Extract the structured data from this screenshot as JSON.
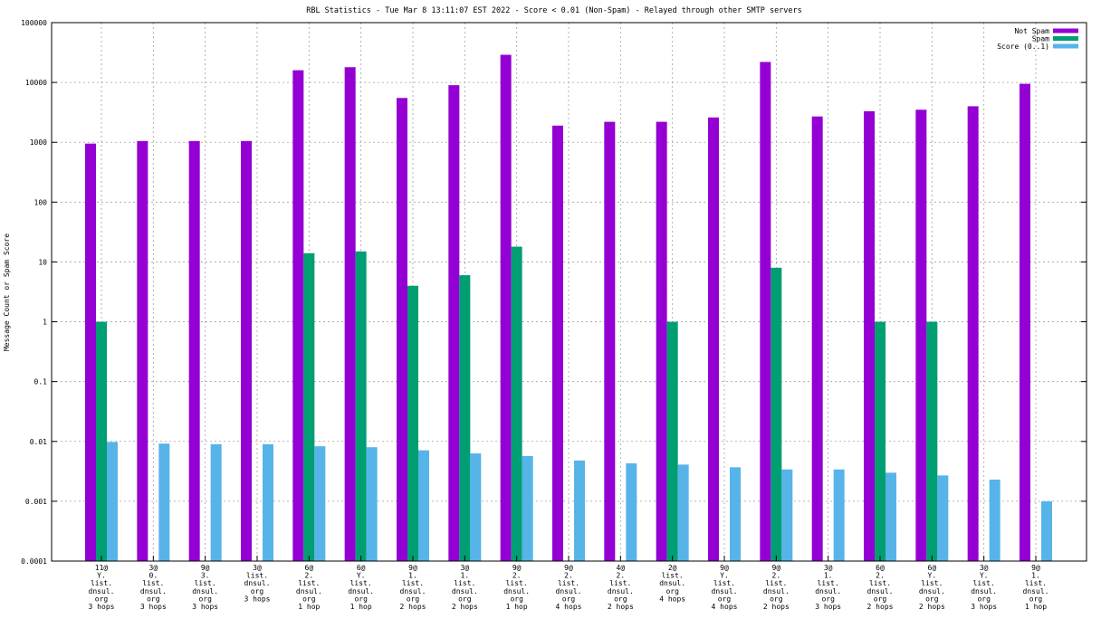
{
  "chart_data": {
    "type": "bar",
    "title": "RBL Statistics - Tue Mar  8 13:11:07 EST 2022 - Score < 0.01 (Non-Spam) - Relayed through other SMTP servers",
    "xlabel": "",
    "ylabel": "Message Count or Spam Score",
    "yscale": "log",
    "ylim": [
      0.0001,
      100000
    ],
    "yticks": [
      "100000",
      "10000",
      "1000",
      "100",
      "10",
      "1",
      "0.1",
      "0.01",
      "0.001",
      "0.0001"
    ],
    "grid": true,
    "legend_position": "top-right",
    "categories": [
      [
        "11@",
        "Y.",
        "list.",
        "dnsul.",
        "org",
        "3 hops"
      ],
      [
        "3@",
        "0.",
        "list.",
        "dnsul.",
        "org",
        "3 hops"
      ],
      [
        "9@",
        "3.",
        "list.",
        "dnsul.",
        "org",
        "3 hops"
      ],
      [
        "3@",
        "list.",
        "dnsul.",
        "org",
        "3 hops"
      ],
      [
        "6@",
        "2.",
        "list.",
        "dnsul.",
        "org",
        "1 hop"
      ],
      [
        "6@",
        "Y.",
        "list.",
        "dnsul.",
        "org",
        "1 hop"
      ],
      [
        "9@",
        "1.",
        "list.",
        "dnsul.",
        "org",
        "2 hops"
      ],
      [
        "3@",
        "1.",
        "list.",
        "dnsul.",
        "org",
        "2 hops"
      ],
      [
        "9@",
        "2.",
        "list.",
        "dnsul.",
        "org",
        "1 hop"
      ],
      [
        "9@",
        "2.",
        "list.",
        "dnsul.",
        "org",
        "4 hops"
      ],
      [
        "4@",
        "2.",
        "list.",
        "dnsul.",
        "org",
        "2 hops"
      ],
      [
        "2@",
        "list.",
        "dnsul.",
        "org",
        "4 hops"
      ],
      [
        "9@",
        "Y.",
        "list.",
        "dnsul.",
        "org",
        "4 hops"
      ],
      [
        "9@",
        "2.",
        "list.",
        "dnsul.",
        "org",
        "2 hops"
      ],
      [
        "3@",
        "1.",
        "list.",
        "dnsul.",
        "org",
        "3 hops"
      ],
      [
        "6@",
        "2.",
        "list.",
        "dnsul.",
        "org",
        "2 hops"
      ],
      [
        "6@",
        "Y.",
        "list.",
        "dnsul.",
        "org",
        "2 hops"
      ],
      [
        "3@",
        "Y.",
        "list.",
        "dnsul.",
        "org",
        "3 hops"
      ],
      [
        "9@",
        "1.",
        "list.",
        "dnsul.",
        "org",
        "1 hop"
      ]
    ],
    "series": [
      {
        "name": "Not Spam",
        "color": "#9400d3",
        "values": [
          950,
          1050,
          1050,
          1050,
          16000,
          18000,
          5500,
          9000,
          29000,
          1900,
          2200,
          2200,
          2600,
          22000,
          2700,
          3300,
          3500,
          4000,
          9500
        ]
      },
      {
        "name": "Spam",
        "color": "#009e73",
        "values": [
          1,
          null,
          null,
          null,
          14,
          15,
          4,
          6,
          18,
          null,
          null,
          1,
          null,
          8,
          null,
          1,
          1,
          null,
          null
        ]
      },
      {
        "name": "Score (0..1)",
        "color": "#56b4e9",
        "values": [
          0.0098,
          0.0092,
          0.009,
          0.009,
          0.0083,
          0.008,
          0.0071,
          0.0063,
          0.0057,
          0.0048,
          0.0043,
          0.0041,
          0.0037,
          0.0034,
          0.0034,
          0.003,
          0.0027,
          0.0023,
          0.001
        ]
      }
    ]
  }
}
